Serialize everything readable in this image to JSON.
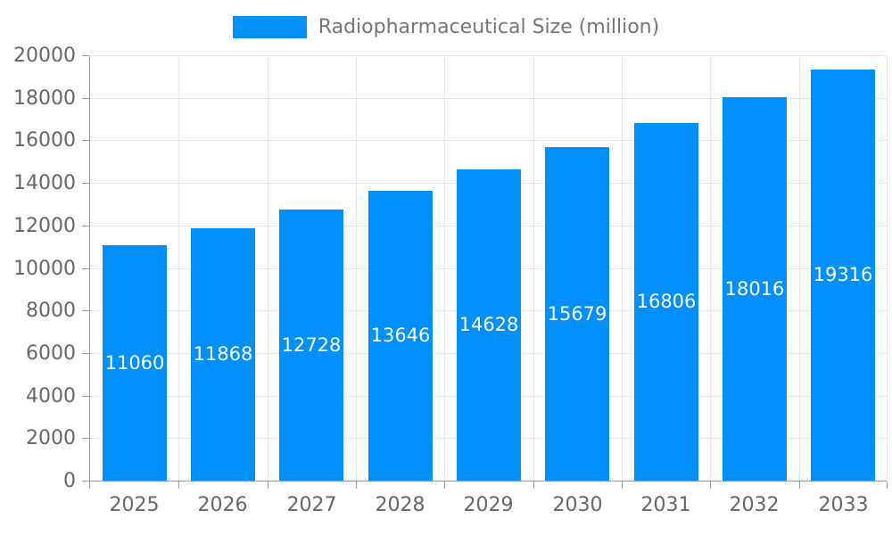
{
  "legend": {
    "label": "Radiopharmaceutical Size (million)"
  },
  "chart_data": {
    "type": "bar",
    "title": "Radiopharmaceutical Size (million)",
    "categories": [
      "2025",
      "2026",
      "2027",
      "2028",
      "2029",
      "2030",
      "2031",
      "2032",
      "2033"
    ],
    "series": [
      {
        "name": "Radiopharmaceutical Size (million)",
        "values": [
          11060,
          11868,
          12728,
          13646,
          14628,
          15679,
          16806,
          18016,
          19316
        ]
      }
    ],
    "value_labels": [
      "11060",
      "11868",
      "12728",
      "13646",
      "14628",
      "15679",
      "16806",
      "18016",
      "19316"
    ],
    "xlabel": "",
    "ylabel": "",
    "ylim": [
      0,
      20000
    ],
    "ytick_step": 2000,
    "yticks": [
      0,
      2000,
      4000,
      6000,
      8000,
      10000,
      12000,
      14000,
      16000,
      18000,
      20000
    ],
    "grid": true,
    "legend_position": "top-center",
    "colors": {
      "bar": "#008FFB",
      "value_label_text": "#ffffff",
      "axis_line": "#999999",
      "tick": "#999999",
      "grid_line": "#e6e6e6",
      "axis_text": "#666666",
      "legend_text": "#757575"
    }
  }
}
